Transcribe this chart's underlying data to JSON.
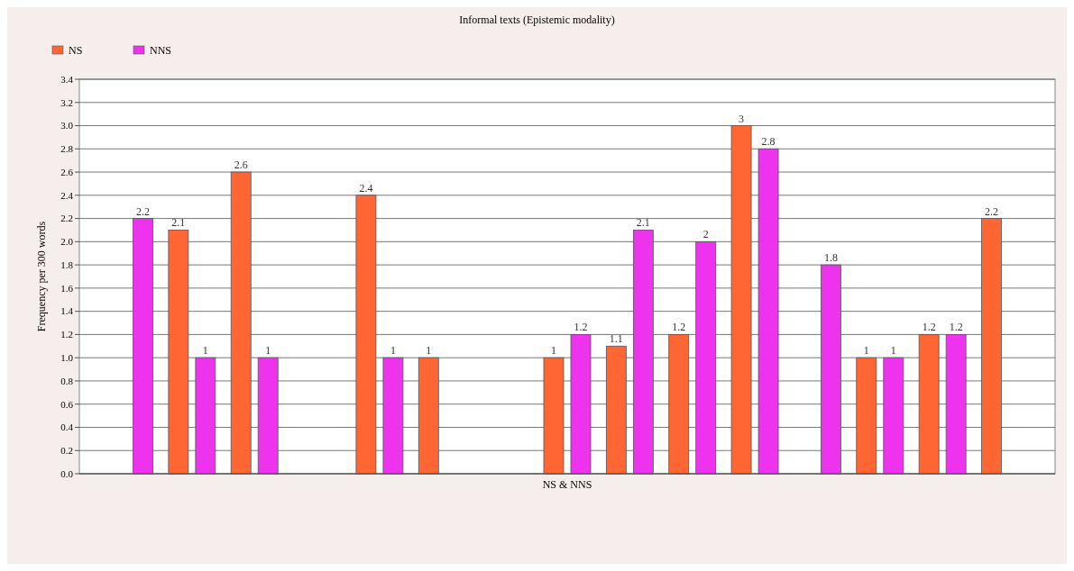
{
  "chart_data": {
    "type": "bar",
    "title": "Informal texts (Epistemic modality)",
    "xlabel": "NS & NNS",
    "ylabel": "Frequency per 300 words",
    "categories": [
      null,
      null,
      null,
      null,
      null,
      null,
      null,
      null,
      null,
      null,
      null,
      null,
      null,
      null,
      null
    ],
    "series": [
      {
        "name": "NS",
        "color": "#ff6633",
        "values": [
          null,
          2.1,
          2.6,
          null,
          2.4,
          1,
          null,
          1,
          1.1,
          1.2,
          3,
          null,
          1,
          1.2,
          2.2
        ]
      },
      {
        "name": "NNS",
        "color": "#ee33ee",
        "values": [
          2.2,
          1,
          1,
          null,
          1,
          null,
          null,
          1.2,
          2.1,
          2,
          2.8,
          1.8,
          1,
          1.2,
          null
        ]
      }
    ],
    "ylim": [
      0,
      3.4
    ],
    "yticks": [
      {
        "value": 0,
        "label": "0.0"
      },
      {
        "value": 0.2,
        "label": "0.2"
      },
      {
        "value": 0.4,
        "label": "0.4"
      },
      {
        "value": 0.6,
        "label": "0.6"
      },
      {
        "value": 0.8,
        "label": "0.8"
      },
      {
        "value": 1,
        "label": "1.0"
      },
      {
        "value": 1.2,
        "label": "1.2"
      },
      {
        "value": 1.4,
        "label": "1.4"
      },
      {
        "value": 1.6,
        "label": "1.6"
      },
      {
        "value": 1.8,
        "label": "1.8"
      },
      {
        "value": 2,
        "label": "2.0"
      },
      {
        "value": 2.2,
        "label": "2.2"
      },
      {
        "value": 2.4,
        "label": "2.4"
      },
      {
        "value": 2.6,
        "label": "2.6"
      },
      {
        "value": 2.8,
        "label": "2.8"
      },
      {
        "value": 3,
        "label": "3.0"
      },
      {
        "value": 3.2,
        "label": "3.2"
      },
      {
        "value": 3.4,
        "label": "3.4"
      }
    ],
    "grid": "y",
    "legend": "top left",
    "data_labels": true
  }
}
